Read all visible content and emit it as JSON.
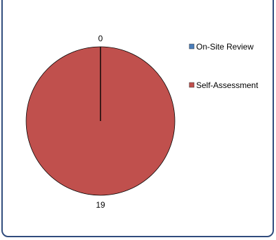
{
  "chart_data": {
    "type": "pie",
    "categories": [
      "On-Site Review",
      "Self-Assessment"
    ],
    "values": [
      0,
      19
    ],
    "data_labels": [
      "0",
      "19"
    ],
    "colors": [
      "#4a7ebb",
      "#c0504d"
    ],
    "legend_position": "right",
    "title": ""
  }
}
